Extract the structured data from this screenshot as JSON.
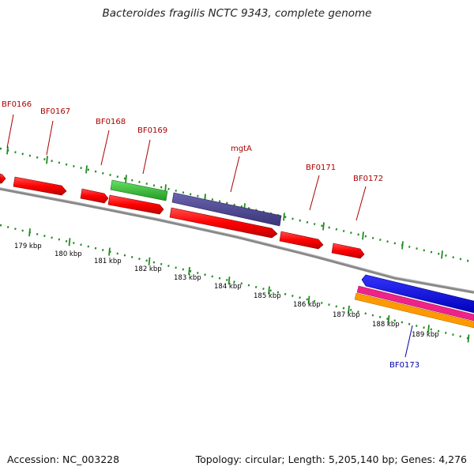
{
  "title": "Bacteroides fragilis NCTC 9343, complete genome",
  "footer": {
    "accession": "Accession: NC_003228",
    "summary": "Topology: circular; Length: 5,205,140 bp; Genes: 4,276"
  },
  "colors": {
    "forward_gene": "#ff0000",
    "reverse_gene": "#0000ff",
    "forward_label": "#aa0000",
    "reverse_label": "#0000aa",
    "green_feature": "#33cc33",
    "purple_feature": "#4b4591",
    "magenta_feature": "#ee2288",
    "orange_feature": "#ff9900",
    "tick": "#228b22",
    "backbone": "#888888"
  },
  "ruler": [
    "179 kbp",
    "180 kbp",
    "181 kbp",
    "182 kbp",
    "183 kbp",
    "184 kbp",
    "185 kbp",
    "186 kbp",
    "187 kbp",
    "188 kbp",
    "189 kbp"
  ],
  "forward_labels": [
    "BF0166",
    "BF0167",
    "BF0168",
    "BF0169",
    "mgtA",
    "BF0171",
    "BF0172"
  ],
  "reverse_labels": [
    "BF0173"
  ]
}
